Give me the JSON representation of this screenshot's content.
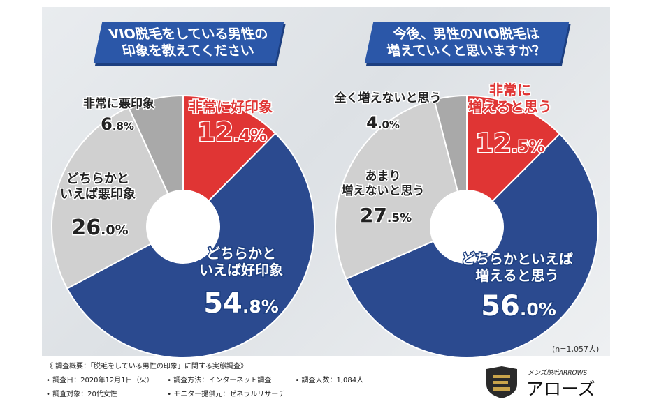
{
  "chart_data": [
    {
      "type": "pie",
      "title": "VIO脱毛をしている男性の印象を教えてください",
      "slices": [
        {
          "label": "非常に好印象",
          "value": 12.4,
          "display": [
            "非常に好印象"
          ],
          "color": "#e03534"
        },
        {
          "label": "どちらかといえば好印象",
          "value": 54.8,
          "display": [
            "どちらかと",
            "いえば好印象"
          ],
          "color": "#2b4a8f"
        },
        {
          "label": "どちらかといえば悪印象",
          "value": 26.0,
          "display": [
            "どちらかと",
            "いえば悪印象"
          ],
          "color": "#d0d0d0"
        },
        {
          "label": "非常に悪印象",
          "value": 6.8,
          "display": [
            "非常に悪印象"
          ],
          "color": "#a9a9a9"
        }
      ]
    },
    {
      "type": "pie",
      "title": "今後、男性のVIO脱毛は増えていくと思いますか？",
      "slices": [
        {
          "label": "非常に増えると思う",
          "value": 12.5,
          "display": [
            "非常に",
            "増えると思う"
          ],
          "color": "#e03534"
        },
        {
          "label": "どちらかといえば増えると思う",
          "value": 56.0,
          "display": [
            "どちらかといえば",
            "増えると思う"
          ],
          "color": "#2b4a8f"
        },
        {
          "label": "あまり増えないと思う",
          "value": 27.5,
          "display": [
            "あまり",
            "増えないと思う"
          ],
          "color": "#d0d0d0"
        },
        {
          "label": "全く増えないと思う",
          "value": 4.0,
          "display": [
            "全く増えないと思う"
          ],
          "color": "#a9a9a9"
        }
      ]
    }
  ],
  "titles": {
    "left": [
      "VIO脱毛をしている男性の",
      "印象を教えてください"
    ],
    "right": [
      "今後、男性のVIO脱毛は",
      "増えていくと思いますか？"
    ]
  },
  "sample_note": "(n=1,057人)",
  "footer": {
    "heading": "《 調査概要：「脱毛をしている男性の印象」に関する実態調査》",
    "date": "• 調査日：2020年12月1日（火）",
    "method": "• 調査方法：インターネット調査",
    "count": "• 調査人数：1,084人",
    "target": "• 調査対象：20代女性",
    "provider": "• モニター提供元：ゼネラルリサーチ"
  },
  "logo": {
    "subtitle": "メンズ脱毛ARROWS",
    "name": "アローズ"
  }
}
